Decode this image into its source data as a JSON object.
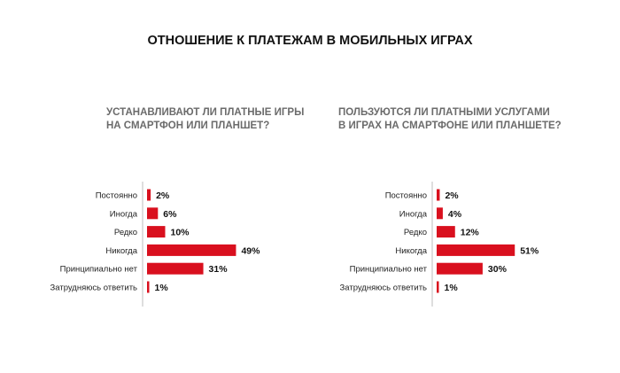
{
  "title": "ОТНОШЕНИЕ К ПЛАТЕЖАМ В МОБИЛЬНЫХ ИГРАХ",
  "chart_data": [
    {
      "type": "bar",
      "orientation": "horizontal",
      "title_lines": [
        "УСТАНАВЛИВАЮТ ЛИ ПЛАТНЫЕ ИГРЫ",
        "НА СМАРТФОН ИЛИ ПЛАНШЕТ?"
      ],
      "categories": [
        "Постоянно",
        "Иногда",
        "Редко",
        "Никогда",
        "Принципиально нет",
        "Затрудняюсь ответить"
      ],
      "values": [
        2,
        6,
        10,
        49,
        31,
        1
      ],
      "labels": [
        "2%",
        "6%",
        "10%",
        "49%",
        "31%",
        "1%"
      ],
      "unit": "%",
      "color": "#d9101e"
    },
    {
      "type": "bar",
      "orientation": "horizontal",
      "title_lines": [
        "ПОЛЬЗУЮТСЯ ЛИ ПЛАТНЫМИ УСЛУГАМИ",
        "В ИГРАХ НА СМАРТФОНЕ ИЛИ ПЛАНШЕТЕ?"
      ],
      "categories": [
        "Постоянно",
        "Иногда",
        "Редко",
        "Никогда",
        "Принципиально нет",
        "Затрудняюсь ответить"
      ],
      "values": [
        2,
        4,
        12,
        51,
        30,
        1
      ],
      "labels": [
        "2%",
        "4%",
        "12%",
        "51%",
        "30%",
        "1%"
      ],
      "unit": "%",
      "color": "#d9101e"
    }
  ]
}
